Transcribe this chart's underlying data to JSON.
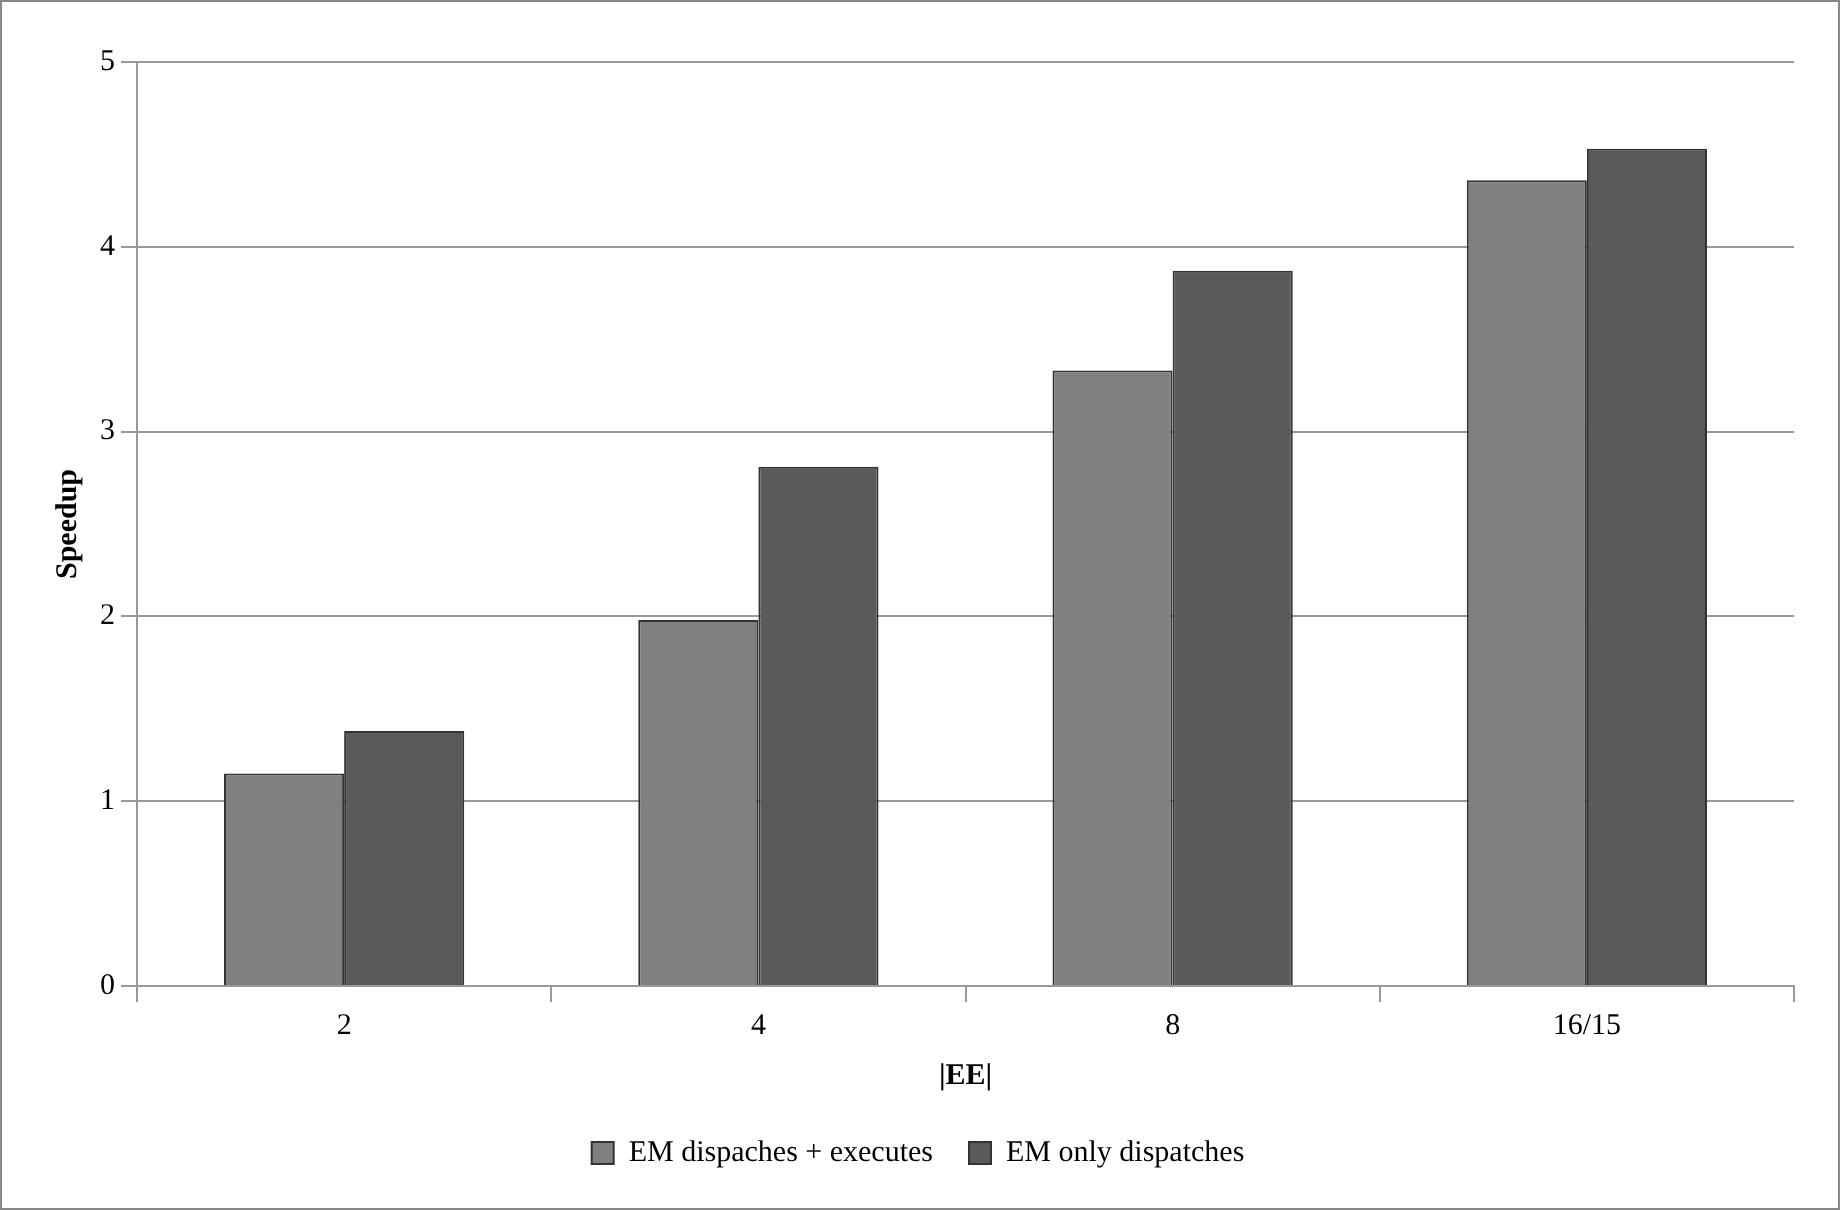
{
  "chart_data": {
    "type": "bar",
    "xlabel": "|EE|",
    "ylabel": "Speedup",
    "categories": [
      "2",
      "4",
      "8",
      "16/15"
    ],
    "series": [
      {
        "name": "EM dispaches + executes",
        "color": "#808080",
        "values": [
          1.15,
          1.98,
          3.33,
          4.36
        ]
      },
      {
        "name": "EM only dispatches",
        "color": "#5a5a5a",
        "values": [
          1.38,
          2.81,
          3.87,
          4.53
        ]
      }
    ],
    "ylim": [
      0,
      5
    ],
    "yticks": [
      0,
      1,
      2,
      3,
      4,
      5
    ],
    "grid": "y",
    "legend": "bottom"
  }
}
